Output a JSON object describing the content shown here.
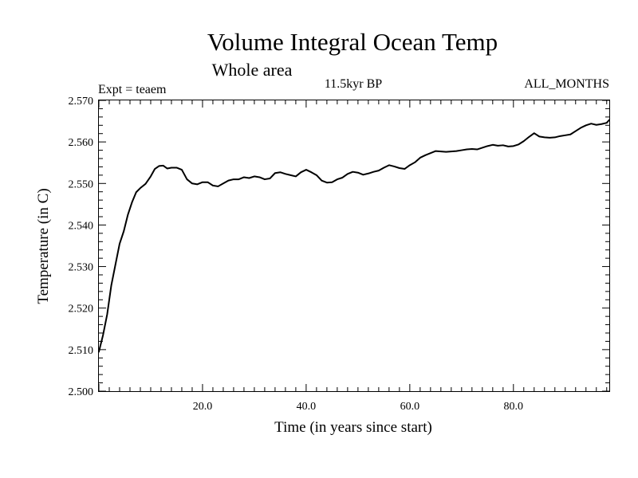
{
  "chart_data": {
    "type": "line",
    "title": "Volume Integral Ocean Temp",
    "subtitle": "Whole area",
    "annotations": {
      "experiment": "Expt = teaem",
      "period": "11.5kyr BP",
      "months": "ALL_MONTHS"
    },
    "xlabel": "Time (in years since start)",
    "ylabel": "Temperature (in C)",
    "xlim": [
      0,
      98.5
    ],
    "ylim": [
      2.5,
      2.57
    ],
    "x_ticks": [
      20,
      40,
      60,
      80
    ],
    "x_tick_labels": [
      "20.0",
      "40.0",
      "60.0",
      "80.0"
    ],
    "y_ticks": [
      2.5,
      2.51,
      2.52,
      2.53,
      2.54,
      2.55,
      2.56,
      2.57
    ],
    "y_tick_labels": [
      "2.500",
      "2.510",
      "2.520",
      "2.530",
      "2.540",
      "2.550",
      "2.560",
      "2.570"
    ],
    "grid": false,
    "series": [
      {
        "name": "Volume Integral Ocean Temp",
        "color": "#000000",
        "x": [
          0.0,
          0.8,
          1.6,
          2.4,
          3.2,
          4.0,
          4.8,
          5.6,
          6.4,
          7.2,
          8.0,
          9.0,
          10.0,
          10.8,
          11.6,
          12.4,
          13.2,
          14.0,
          15.0,
          16.0,
          17.0,
          18.0,
          19.0,
          20.0,
          21.0,
          22.0,
          23.0,
          24.0,
          25.0,
          26.0,
          27.0,
          28.0,
          29.0,
          30.0,
          31.0,
          32.0,
          33.0,
          34.0,
          35.0,
          36.0,
          37.0,
          38.0,
          39.0,
          40.0,
          41.0,
          42.0,
          43.0,
          44.0,
          45.0,
          46.0,
          47.0,
          48.0,
          49.0,
          50.0,
          51.0,
          52.0,
          53.0,
          54.0,
          55.0,
          56.0,
          57.0,
          58.0,
          59.0,
          60.0,
          61.0,
          62.0,
          63.0,
          64.0,
          65.0,
          66.0,
          67.0,
          68.0,
          69.0,
          70.0,
          71.0,
          72.0,
          73.0,
          74.0,
          75.0,
          76.0,
          77.0,
          78.0,
          79.0,
          80.0,
          81.0,
          82.0,
          83.0,
          84.0,
          85.0,
          86.0,
          87.0,
          88.0,
          89.0,
          90.0,
          91.0,
          92.0,
          93.0,
          94.0,
          95.0,
          96.0,
          97.0,
          98.0,
          98.5
        ],
        "values": [
          2.5095,
          2.5135,
          2.5185,
          2.5255,
          2.5305,
          2.5355,
          2.5385,
          2.5425,
          2.5455,
          2.5479,
          2.5489,
          2.5499,
          2.5517,
          2.5535,
          2.5542,
          2.5543,
          2.5536,
          2.5538,
          2.5538,
          2.5533,
          2.551,
          2.55,
          2.5498,
          2.5503,
          2.5503,
          2.5495,
          2.5493,
          2.55,
          2.5507,
          2.551,
          2.551,
          2.5515,
          2.5513,
          2.5517,
          2.5515,
          2.551,
          2.5512,
          2.5525,
          2.5527,
          2.5523,
          2.552,
          2.5517,
          2.5527,
          2.5533,
          2.5527,
          2.552,
          2.5507,
          2.5502,
          2.5503,
          2.551,
          2.5514,
          2.5523,
          2.5528,
          2.5526,
          2.5521,
          2.5524,
          2.5528,
          2.5531,
          2.5538,
          2.5544,
          2.5541,
          2.5537,
          2.5535,
          2.5544,
          2.5551,
          2.5562,
          2.5568,
          2.5573,
          2.5578,
          2.5577,
          2.5576,
          2.5577,
          2.5578,
          2.558,
          2.5582,
          2.5583,
          2.5582,
          2.5586,
          2.559,
          2.5593,
          2.5591,
          2.5592,
          2.5589,
          2.559,
          2.5594,
          2.5602,
          2.5612,
          2.5621,
          2.5613,
          2.5611,
          2.561,
          2.5611,
          2.5614,
          2.5616,
          2.5618,
          2.5626,
          2.5634,
          2.564,
          2.5644,
          2.5641,
          2.5643,
          2.5646,
          2.5653
        ]
      }
    ]
  }
}
